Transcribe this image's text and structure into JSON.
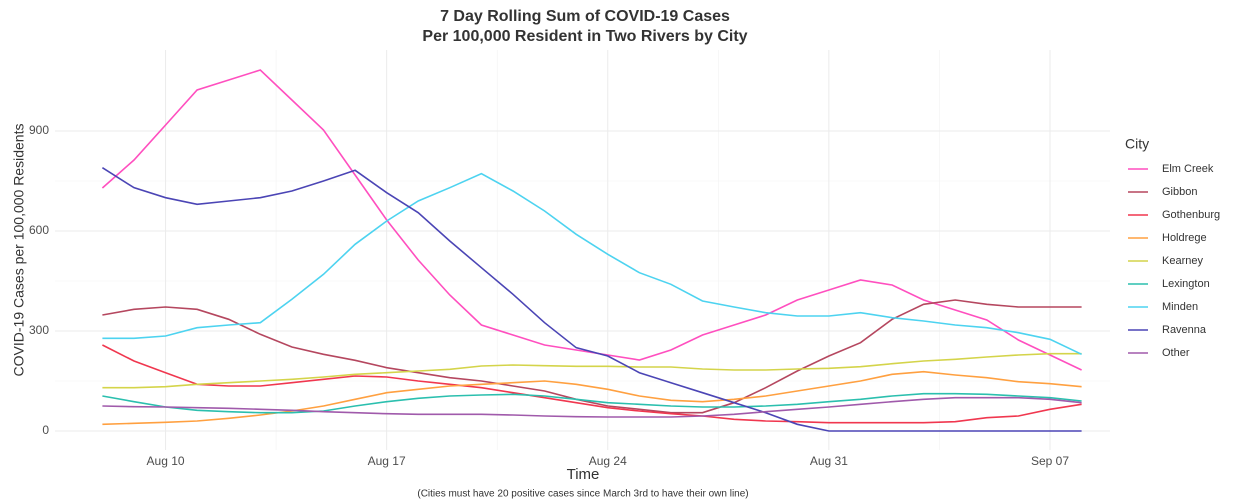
{
  "chart_data": {
    "type": "line",
    "title": [
      "7 Day Rolling Sum of COVID-19 Cases",
      "Per 100,000 Resident in Two Rivers by City"
    ],
    "x_label": "Time",
    "y_label": "COVID-19 Cases per 100,000 Residents",
    "caption": "(Cities must have 20 positive cases since March 3rd to have their own line)",
    "legend_title": "City",
    "legend": "right",
    "grid": true,
    "x": [
      8,
      9,
      10,
      11,
      12,
      13,
      14,
      15,
      16,
      17,
      18,
      19,
      20,
      21,
      22,
      23,
      24,
      25,
      26,
      27,
      28,
      29,
      30,
      31,
      32,
      33,
      34,
      35,
      36,
      37,
      38,
      39
    ],
    "xlim": [
      6.5,
      39.9
    ],
    "xticks": [
      {
        "value": 10,
        "label": "Aug 10"
      },
      {
        "value": 17,
        "label": "Aug 17"
      },
      {
        "value": 24,
        "label": "Aug 24"
      },
      {
        "value": 31,
        "label": "Aug 31"
      },
      {
        "value": 38,
        "label": "Sep 07"
      }
    ],
    "ylim": [
      -57,
      1143
    ],
    "yticks": [
      0,
      300,
      600,
      900
    ],
    "series": [
      {
        "name": "Elm Creek",
        "color": "#ff4fbf",
        "values": [
          729,
          813,
          918,
          1023,
          1053,
          1083,
          993,
          903,
          768,
          633,
          513,
          408,
          318,
          288,
          258,
          243,
          228,
          213,
          243,
          288,
          318,
          348,
          393,
          423,
          453,
          438,
          393,
          363,
          333,
          273,
          228,
          183
        ]
      },
      {
        "name": "Gibbon",
        "color": "#b5475f",
        "values": [
          348,
          365,
          372,
          365,
          335,
          290,
          252,
          230,
          212,
          190,
          175,
          160,
          150,
          135,
          120,
          95,
          75,
          65,
          55,
          55,
          85,
          130,
          180,
          225,
          265,
          335,
          380,
          393,
          380,
          372,
          372,
          372
        ]
      },
      {
        "name": "Gothenburg",
        "color": "#f0374f",
        "values": [
          258,
          210,
          175,
          140,
          135,
          135,
          145,
          155,
          165,
          162,
          150,
          140,
          130,
          115,
          100,
          85,
          70,
          60,
          52,
          45,
          35,
          30,
          28,
          25,
          25,
          25,
          25,
          28,
          40,
          45,
          65,
          80
        ]
      },
      {
        "name": "Holdrege",
        "color": "#ffa040",
        "values": [
          20,
          23,
          26,
          30,
          38,
          48,
          60,
          75,
          95,
          115,
          125,
          135,
          140,
          145,
          150,
          140,
          125,
          105,
          92,
          88,
          95,
          105,
          120,
          135,
          150,
          170,
          178,
          168,
          160,
          148,
          142,
          133
        ]
      },
      {
        "name": "Kearney",
        "color": "#d4d44a",
        "values": [
          130,
          130,
          133,
          140,
          145,
          150,
          155,
          162,
          170,
          175,
          180,
          185,
          195,
          198,
          196,
          194,
          194,
          192,
          192,
          186,
          183,
          183,
          186,
          188,
          193,
          202,
          210,
          215,
          222,
          228,
          232,
          232
        ]
      },
      {
        "name": "Lexington",
        "color": "#2bbfae",
        "values": [
          105,
          88,
          72,
          62,
          58,
          55,
          55,
          60,
          75,
          88,
          98,
          105,
          108,
          110,
          105,
          95,
          85,
          80,
          75,
          72,
          72,
          75,
          80,
          88,
          95,
          105,
          112,
          112,
          110,
          105,
          100,
          90
        ]
      },
      {
        "name": "Minden",
        "color": "#4dd3f0",
        "values": [
          278,
          278,
          285,
          310,
          318,
          325,
          395,
          470,
          560,
          630,
          690,
          730,
          772,
          720,
          660,
          590,
          530,
          475,
          440,
          390,
          372,
          355,
          345,
          345,
          355,
          340,
          330,
          318,
          310,
          295,
          275,
          230
        ]
      },
      {
        "name": "Ravenna",
        "color": "#4b45b5",
        "values": [
          790,
          730,
          700,
          680,
          690,
          700,
          720,
          750,
          782,
          715,
          655,
          570,
          490,
          410,
          325,
          250,
          225,
          175,
          145,
          115,
          85,
          55,
          20,
          0,
          0,
          0,
          0,
          0,
          0,
          0,
          0,
          0
        ]
      },
      {
        "name": "Other",
        "color": "#a05aab",
        "values": [
          75,
          73,
          72,
          70,
          68,
          65,
          62,
          58,
          55,
          52,
          50,
          50,
          50,
          48,
          45,
          43,
          42,
          42,
          42,
          45,
          50,
          58,
          65,
          72,
          80,
          88,
          95,
          100,
          100,
          100,
          95,
          85
        ]
      }
    ]
  }
}
